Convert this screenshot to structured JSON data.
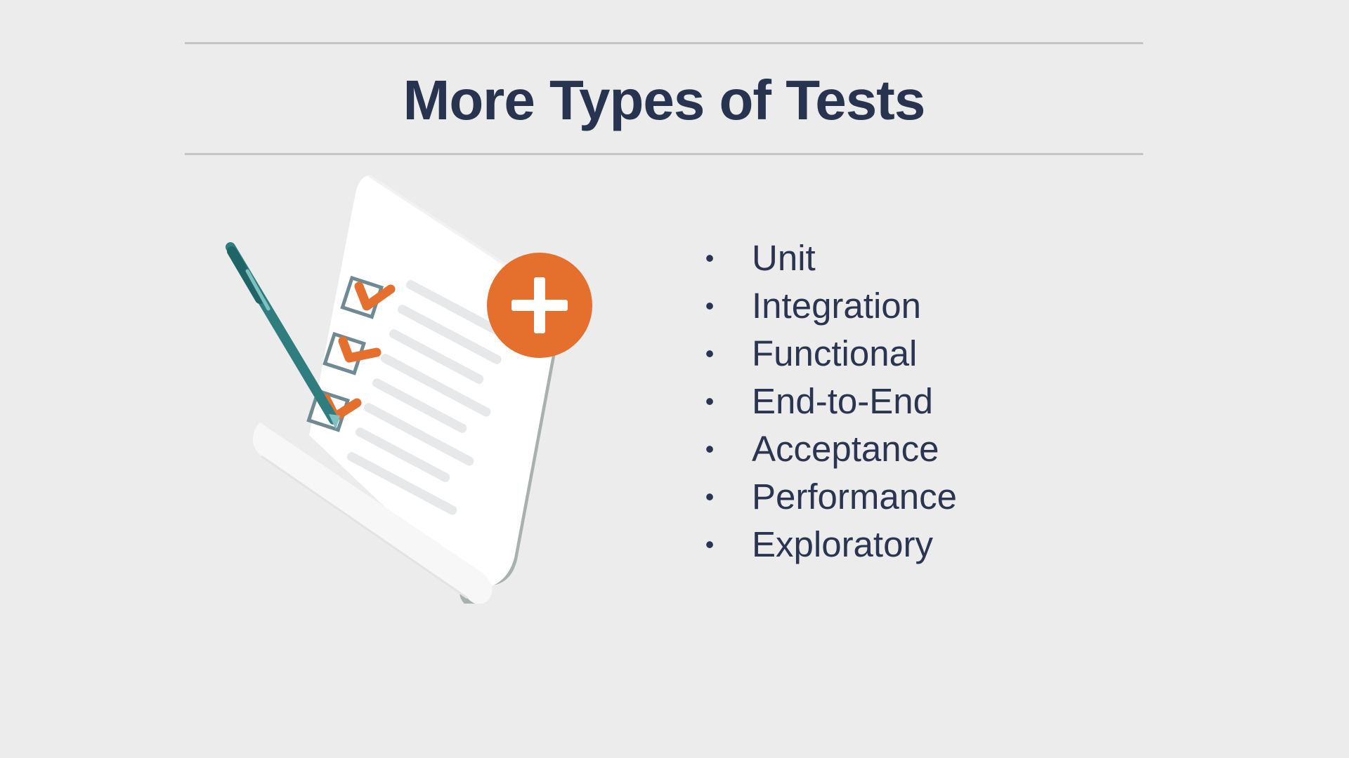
{
  "slide": {
    "title": "More Types of Tests",
    "test_types": [
      "Unit",
      "Integration",
      "Functional",
      "End-to-End",
      "Acceptance",
      "Performance",
      "Exploratory"
    ],
    "bullet_glyph": "•"
  },
  "illustration": {
    "icons": [
      "checklist-paper-icon",
      "pen-icon",
      "checkbox-checked-icon",
      "plus-circle-icon"
    ],
    "colors": {
      "accent_orange": "#e5702e",
      "pen_teal": "#2f7d7f",
      "paper_white": "#ffffff",
      "paper_curl_gray": "#a9b0b0",
      "checkbox_slate": "#6f8a92",
      "text_line_gray": "#e6e8ea"
    }
  },
  "colors": {
    "background": "#ececec",
    "title_navy": "#27334f",
    "body_text_navy": "#2b3551",
    "rule_gray": "#c4c4c4"
  }
}
